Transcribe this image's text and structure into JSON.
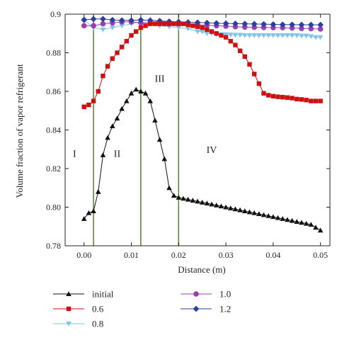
{
  "chart_data": {
    "type": "line",
    "xlabel": "Distance (m)",
    "ylabel": "Volume fraction of vapor refrigerant",
    "xlim": [
      -0.004,
      0.052
    ],
    "ylim": [
      0.78,
      0.9
    ],
    "xticks": [
      0.0,
      0.01,
      0.02,
      0.03,
      0.04,
      0.05
    ],
    "yticks": [
      0.78,
      0.8,
      0.82,
      0.84,
      0.86,
      0.88,
      0.9
    ],
    "xtick_labels": [
      "0.00",
      "0.01",
      "0.02",
      "0.03",
      "0.04",
      "0.05"
    ],
    "ytick_labels": [
      "0.78",
      "0.80",
      "0.82",
      "0.84",
      "0.86",
      "0.88",
      "0.9"
    ],
    "vertical_lines": [
      0.002,
      0.012,
      0.02
    ],
    "vline_color": "#5a8a3a",
    "regions": [
      {
        "label": "I",
        "x": -0.002,
        "y": 0.826
      },
      {
        "label": "II",
        "x": 0.007,
        "y": 0.826
      },
      {
        "label": "III",
        "x": 0.016,
        "y": 0.865
      },
      {
        "label": "IV",
        "x": 0.027,
        "y": 0.828
      }
    ],
    "legend_position": "bottom",
    "grid": false,
    "series": [
      {
        "name": "initial",
        "color": "#111111",
        "marker": "triangle-up",
        "x": [
          0.0,
          0.001,
          0.002,
          0.003,
          0.004,
          0.005,
          0.006,
          0.007,
          0.008,
          0.009,
          0.01,
          0.011,
          0.012,
          0.013,
          0.014,
          0.015,
          0.016,
          0.017,
          0.018,
          0.019,
          0.02,
          0.021,
          0.022,
          0.023,
          0.024,
          0.025,
          0.026,
          0.027,
          0.028,
          0.029,
          0.03,
          0.031,
          0.032,
          0.033,
          0.034,
          0.035,
          0.036,
          0.037,
          0.038,
          0.039,
          0.04,
          0.041,
          0.042,
          0.043,
          0.044,
          0.045,
          0.046,
          0.047,
          0.048,
          0.049,
          0.05
        ],
        "y": [
          0.794,
          0.797,
          0.798,
          0.808,
          0.827,
          0.836,
          0.842,
          0.846,
          0.851,
          0.855,
          0.859,
          0.861,
          0.86,
          0.859,
          0.855,
          0.845,
          0.835,
          0.825,
          0.81,
          0.806,
          0.805,
          0.8045,
          0.804,
          0.8035,
          0.803,
          0.8025,
          0.802,
          0.8015,
          0.801,
          0.8005,
          0.8,
          0.7995,
          0.799,
          0.7985,
          0.798,
          0.7975,
          0.797,
          0.7965,
          0.796,
          0.7955,
          0.795,
          0.7945,
          0.794,
          0.7935,
          0.793,
          0.7925,
          0.792,
          0.7915,
          0.791,
          0.7895,
          0.788
        ]
      },
      {
        "name": "0.6",
        "color": "#cc1111",
        "marker": "square",
        "x": [
          0.0,
          0.001,
          0.002,
          0.003,
          0.004,
          0.005,
          0.006,
          0.007,
          0.008,
          0.009,
          0.01,
          0.011,
          0.012,
          0.013,
          0.014,
          0.015,
          0.016,
          0.017,
          0.018,
          0.019,
          0.02,
          0.021,
          0.022,
          0.023,
          0.024,
          0.025,
          0.026,
          0.027,
          0.028,
          0.029,
          0.03,
          0.031,
          0.032,
          0.033,
          0.034,
          0.035,
          0.036,
          0.037,
          0.038,
          0.039,
          0.04,
          0.041,
          0.042,
          0.043,
          0.044,
          0.045,
          0.046,
          0.047,
          0.048,
          0.049,
          0.05
        ],
        "y": [
          0.852,
          0.853,
          0.855,
          0.86,
          0.868,
          0.873,
          0.877,
          0.88,
          0.883,
          0.886,
          0.889,
          0.891,
          0.893,
          0.894,
          0.895,
          0.895,
          0.895,
          0.895,
          0.895,
          0.895,
          0.895,
          0.895,
          0.8945,
          0.894,
          0.8935,
          0.893,
          0.892,
          0.891,
          0.89,
          0.889,
          0.888,
          0.886,
          0.884,
          0.881,
          0.878,
          0.874,
          0.869,
          0.864,
          0.859,
          0.858,
          0.8575,
          0.8572,
          0.857,
          0.8568,
          0.8565,
          0.856,
          0.8558,
          0.8555,
          0.855,
          0.855,
          0.855
        ]
      },
      {
        "name": "0.8",
        "color": "#7ec4e8",
        "marker": "triangle-down",
        "x": [
          0.0,
          0.002,
          0.004,
          0.006,
          0.008,
          0.01,
          0.012,
          0.014,
          0.016,
          0.018,
          0.02,
          0.022,
          0.024,
          0.025,
          0.026,
          0.027,
          0.028,
          0.029,
          0.03,
          0.031,
          0.032,
          0.033,
          0.034,
          0.035,
          0.036,
          0.037,
          0.038,
          0.039,
          0.04,
          0.041,
          0.042,
          0.043,
          0.044,
          0.045,
          0.046,
          0.047,
          0.048,
          0.049,
          0.05
        ],
        "y": [
          0.897,
          0.893,
          0.892,
          0.893,
          0.894,
          0.895,
          0.896,
          0.895,
          0.894,
          0.8935,
          0.893,
          0.8925,
          0.891,
          0.891,
          0.89,
          0.89,
          0.8895,
          0.8895,
          0.8895,
          0.8893,
          0.8892,
          0.8892,
          0.889,
          0.889,
          0.889,
          0.889,
          0.889,
          0.889,
          0.889,
          0.889,
          0.889,
          0.889,
          0.889,
          0.889,
          0.8888,
          0.8888,
          0.8885,
          0.888,
          0.888
        ]
      },
      {
        "name": "1.0",
        "color": "#9b3fb0",
        "marker": "circle",
        "x": [
          0.0,
          0.002,
          0.004,
          0.006,
          0.008,
          0.01,
          0.012,
          0.014,
          0.016,
          0.018,
          0.02,
          0.022,
          0.024,
          0.026,
          0.028,
          0.03,
          0.032,
          0.034,
          0.036,
          0.038,
          0.04,
          0.042,
          0.044,
          0.046,
          0.048,
          0.05
        ],
        "y": [
          0.894,
          0.894,
          0.895,
          0.8955,
          0.896,
          0.896,
          0.8955,
          0.8955,
          0.8955,
          0.895,
          0.895,
          0.8948,
          0.8945,
          0.8943,
          0.894,
          0.8938,
          0.8935,
          0.8933,
          0.8932,
          0.8931,
          0.893,
          0.893,
          0.8928,
          0.8926,
          0.8925,
          0.8923
        ]
      },
      {
        "name": "1.2",
        "color": "#2d3f9e",
        "marker": "diamond",
        "x": [
          0.0,
          0.002,
          0.004,
          0.006,
          0.008,
          0.01,
          0.012,
          0.014,
          0.016,
          0.018,
          0.02,
          0.022,
          0.024,
          0.026,
          0.028,
          0.03,
          0.032,
          0.034,
          0.036,
          0.038,
          0.04,
          0.042,
          0.044,
          0.046,
          0.048,
          0.05
        ],
        "y": [
          0.897,
          0.8975,
          0.8975,
          0.897,
          0.8968,
          0.8968,
          0.897,
          0.8968,
          0.8965,
          0.8962,
          0.896,
          0.8958,
          0.8957,
          0.8955,
          0.8953,
          0.8952,
          0.8951,
          0.895,
          0.8949,
          0.8948,
          0.8947,
          0.8946,
          0.8946,
          0.8945,
          0.8945,
          0.8945
        ]
      }
    ]
  }
}
